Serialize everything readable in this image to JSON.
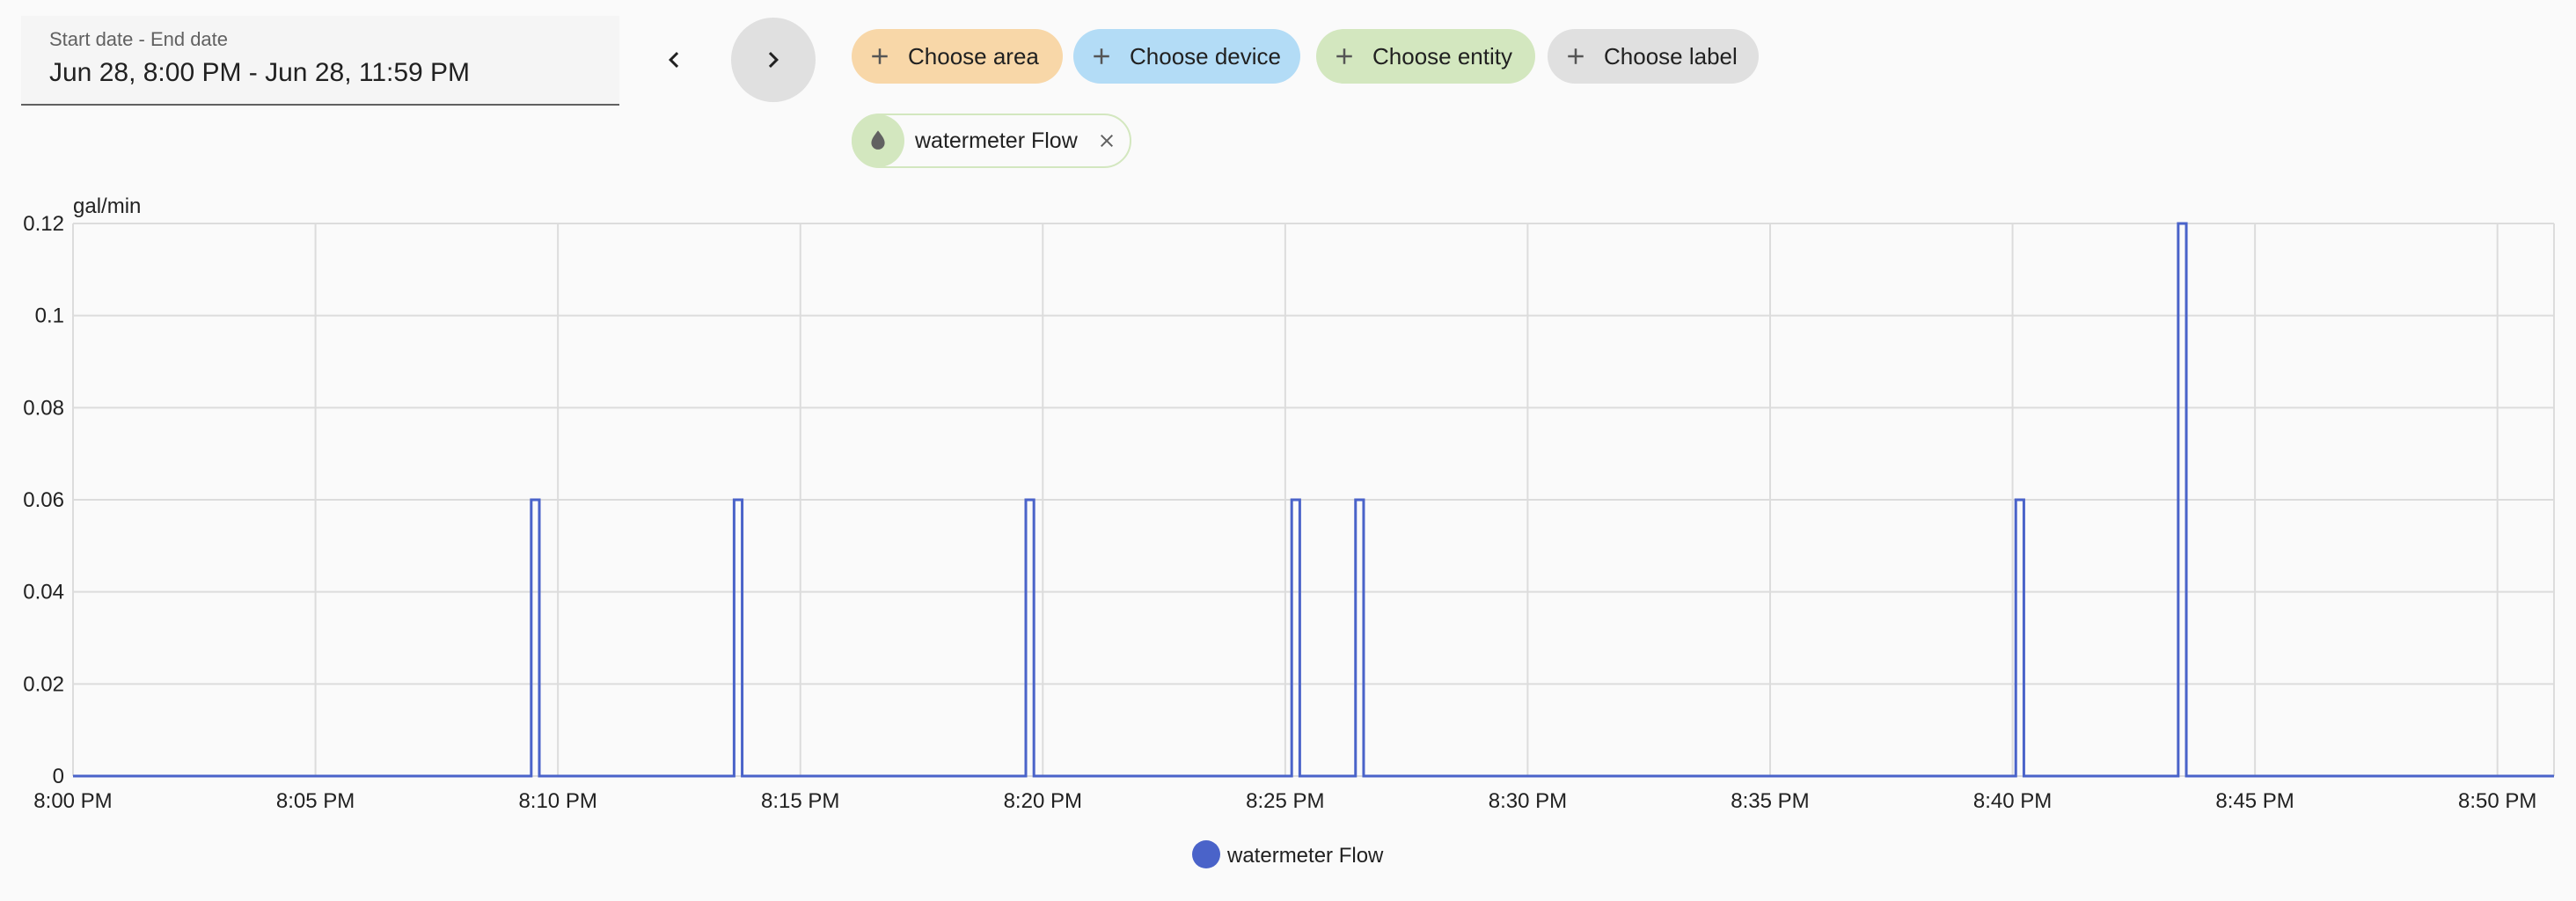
{
  "date_picker": {
    "caption": "Start date - End date",
    "value": "Jun 28, 8:00 PM - Jun 28, 11:59 PM"
  },
  "nav": {
    "prev_icon": "chevron-left-icon",
    "next_icon": "chevron-right-icon"
  },
  "targets": {
    "area": "Choose area",
    "device": "Choose device",
    "entity": "Choose entity",
    "label": "Choose label"
  },
  "selected_entity": {
    "name": "watermeter Flow",
    "icon": "water-drop-icon"
  },
  "colors": {
    "series": "#4a63c9",
    "area_chip": "#f8d7a8",
    "device_chip": "#b3dcf6",
    "entity_chip": "#d3e7bf",
    "label_chip": "#e0e0e0"
  },
  "chart_data": {
    "type": "line",
    "step": true,
    "ylabel": "gal/min",
    "ylim": [
      0,
      0.12
    ],
    "y_ticks": [
      "0",
      "0.02",
      "0.04",
      "0.06",
      "0.08",
      "0.1",
      "0.12"
    ],
    "x_ticks": [
      "8:00 PM",
      "8:05 PM",
      "8:10 PM",
      "8:15 PM",
      "8:20 PM",
      "8:25 PM",
      "8:30 PM",
      "8:35 PM",
      "8:40 PM",
      "8:45 PM",
      "8:50 PM"
    ],
    "x_range_minutes": [
      "8:00 PM",
      "8:51:10 PM"
    ],
    "grid": true,
    "legend_position": "bottom-center",
    "series": [
      {
        "name": "watermeter Flow",
        "pulses": [
          {
            "start": "8:09:27 PM",
            "end": "8:09:37 PM",
            "value": 0.06
          },
          {
            "start": "8:13:38 PM",
            "end": "8:13:48 PM",
            "value": 0.06
          },
          {
            "start": "8:19:39 PM",
            "end": "8:19:49 PM",
            "value": 0.06
          },
          {
            "start": "8:25:08 PM",
            "end": "8:25:18 PM",
            "value": 0.06
          },
          {
            "start": "8:26:27 PM",
            "end": "8:26:37 PM",
            "value": 0.06
          },
          {
            "start": "8:40:04 PM",
            "end": "8:40:14 PM",
            "value": 0.06
          },
          {
            "start": "8:43:25 PM",
            "end": "8:43:35 PM",
            "value": 0.12
          }
        ],
        "baseline": 0
      }
    ]
  }
}
